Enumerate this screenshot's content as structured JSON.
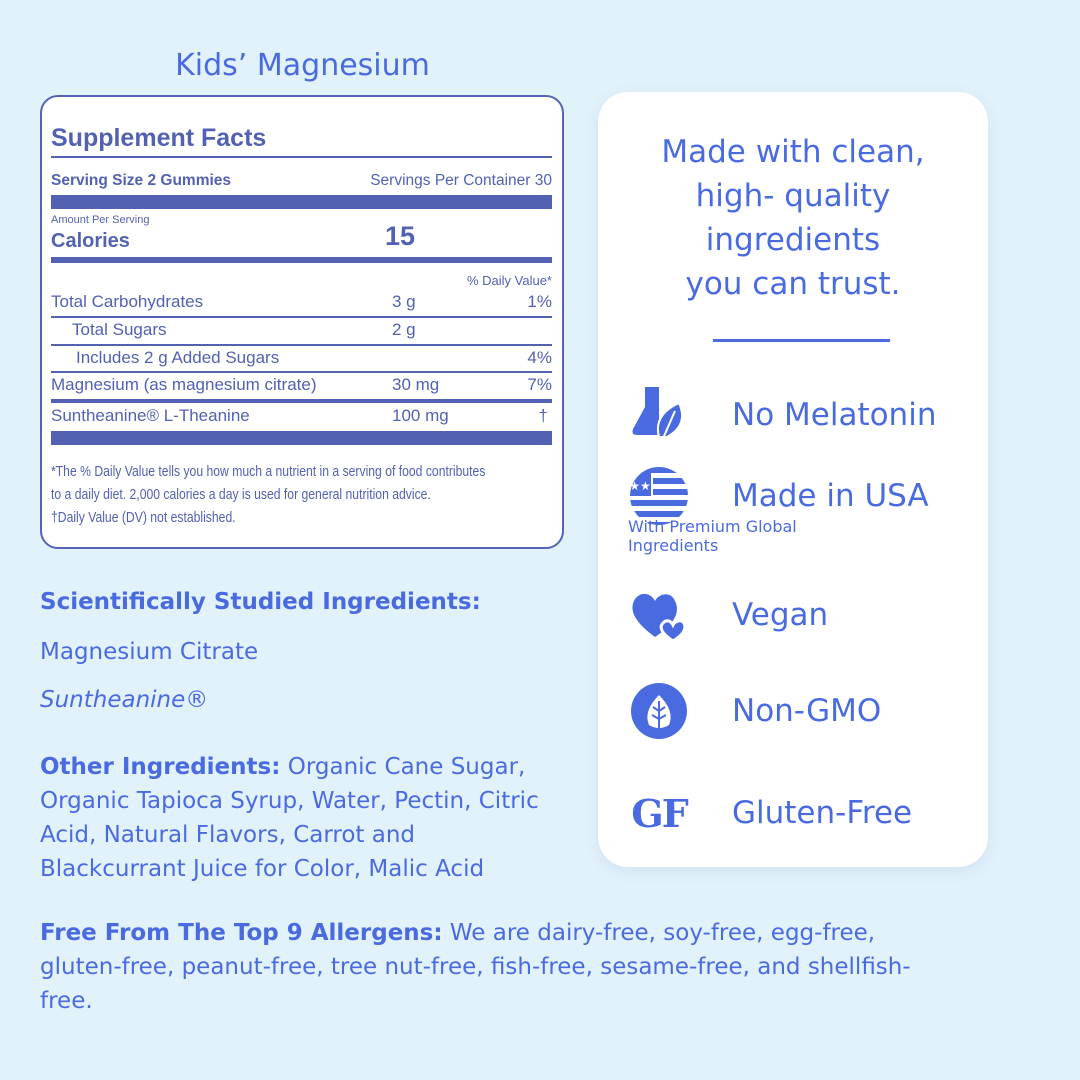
{
  "title": "Kids’ Magnesium",
  "facts": {
    "heading": "Supplement Facts",
    "serving_size": "Serving Size 2 Gummies",
    "servings_per_container": "Servings Per Container 30",
    "amount_per_serving": "Amount Per Serving",
    "calories_label": "Calories",
    "calories_value": "15",
    "dv_header": "% Daily Value*",
    "rows": [
      {
        "name": "Total Carbohydrates",
        "amount": "3 g",
        "dv": "1%"
      },
      {
        "name": "Total Sugars",
        "amount": "2 g",
        "dv": ""
      },
      {
        "name": "Includes 2 g Added Sugars",
        "amount": "",
        "dv": "4%"
      },
      {
        "name": "Magnesium (as magnesium citrate)",
        "amount": "30 mg",
        "dv": "7%"
      },
      {
        "name": "Suntheanine® L-Theanine",
        "amount": "100 mg",
        "dv": "†"
      }
    ],
    "footnote1": "*The % Daily Value tells you how much a nutrient in a serving of food contributes",
    "footnote2": "to a daily diet. 2,000 calories a day is used for general nutrition advice.",
    "footnote3": "†Daily Value (DV) not established."
  },
  "studied": {
    "heading": "Scientifically Studied Ingredients:",
    "items": [
      "Magnesium Citrate",
      "Suntheanine®"
    ]
  },
  "other": {
    "label": "Other Ingredients:",
    "text": " Organic Cane Sugar, Organic Tapioca Syrup, Water, Pectin, Citric Acid, Natural Flavors, Carrot and Blackcurrant Juice for Color, Malic Acid"
  },
  "allergens": {
    "label": "Free From The Top 9 Allergens:",
    "text": " We are dairy-free, soy-free, egg-free, gluten-free, peanut-free, tree nut-free, fish-free, sesame-free, and shellfish-free."
  },
  "card": {
    "tagline": [
      "Made with clean,",
      "high- quality",
      "ingredients",
      "you can trust."
    ],
    "features": [
      {
        "icon": "flask-leaf-icon",
        "label": "No Melatonin"
      },
      {
        "icon": "usa-flag-icon",
        "label": "Made in USA",
        "sub": [
          "With Premium Global",
          "Ingredients"
        ]
      },
      {
        "icon": "hearts-icon",
        "label": "Vegan"
      },
      {
        "icon": "non-gmo-leaf-icon",
        "label": "Non-GMO"
      },
      {
        "icon": "gf-icon",
        "label": "Gluten-Free",
        "glyph": "GF"
      }
    ]
  },
  "colors": {
    "accent": "#4a6be0",
    "panel": "#5361b3",
    "background": "#e2f2fb"
  }
}
